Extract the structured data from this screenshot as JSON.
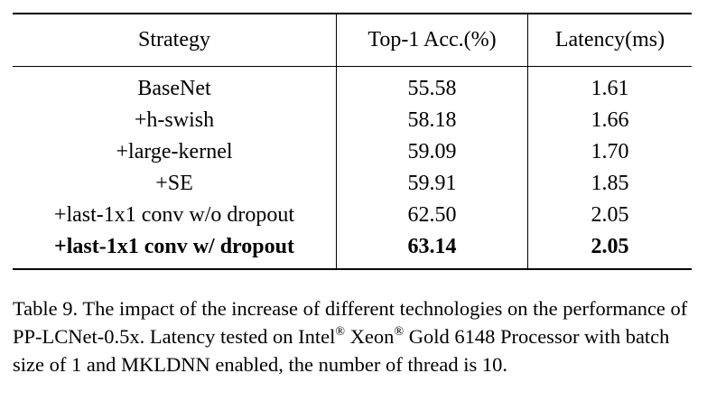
{
  "table": {
    "headers": [
      "Strategy",
      "Top-1 Acc.(%)",
      "Latency(ms)"
    ],
    "rows": [
      {
        "strategy": "BaseNet",
        "acc": "55.58",
        "latency": "1.61",
        "bold": false
      },
      {
        "strategy": "+h-swish",
        "acc": "58.18",
        "latency": "1.66",
        "bold": false
      },
      {
        "strategy": "+large-kernel",
        "acc": "59.09",
        "latency": "1.70",
        "bold": false
      },
      {
        "strategy": "+SE",
        "acc": "59.91",
        "latency": "1.85",
        "bold": false
      },
      {
        "strategy": "+last-1x1 conv w/o dropout",
        "acc": "62.50",
        "latency": "2.05",
        "bold": false
      },
      {
        "strategy": "+last-1x1 conv w/ dropout",
        "acc": "63.14",
        "latency": "2.05",
        "bold": true
      }
    ]
  },
  "caption": {
    "part1": "Table 9. The impact of the increase of different technologies on the performance of PP-LCNet-0.5x.  Latency tested on Intel",
    "reg1": "®",
    "part2": " Xeon",
    "reg2": "®",
    "part3": " Gold 6148 Processor with batch size of 1 and MKLDNN enabled, the number of thread is 10."
  }
}
